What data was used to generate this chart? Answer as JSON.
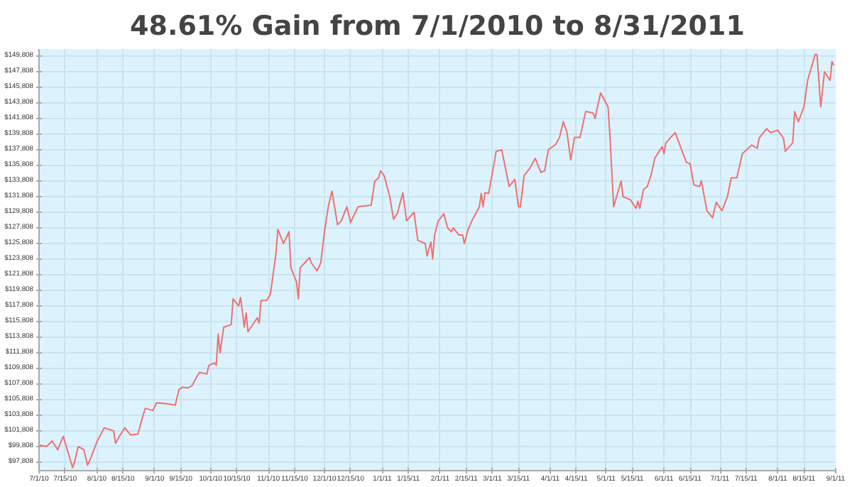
{
  "chart_data": {
    "type": "line",
    "title": "48.61% Gain from 7/1/2010 to 8/31/2011",
    "x": [
      "2010-07-01",
      "2010-07-05",
      "2010-07-08",
      "2010-07-11",
      "2010-07-14",
      "2010-07-19",
      "2010-07-20",
      "2010-07-22",
      "2010-07-25",
      "2010-07-27",
      "2010-07-29",
      "2010-08-01",
      "2010-08-05",
      "2010-08-10",
      "2010-08-11",
      "2010-08-13",
      "2010-08-16",
      "2010-08-19",
      "2010-08-23",
      "2010-08-26",
      "2010-08-27",
      "2010-08-31",
      "2010-09-02",
      "2010-09-07",
      "2010-09-12",
      "2010-09-14",
      "2010-09-16",
      "2010-09-19",
      "2010-09-21",
      "2010-09-23",
      "2010-09-25",
      "2010-09-29",
      "2010-09-30",
      "2010-10-03",
      "2010-10-04",
      "2010-10-05",
      "2010-10-06",
      "2010-10-08",
      "2010-10-12",
      "2010-10-13",
      "2010-10-16",
      "2010-10-17",
      "2010-10-19",
      "2010-10-20",
      "2010-10-21",
      "2010-10-26",
      "2010-10-27",
      "2010-10-28",
      "2010-10-31",
      "2010-11-02",
      "2010-11-05",
      "2010-11-06",
      "2010-11-09",
      "2010-11-12",
      "2010-11-13",
      "2010-11-16",
      "2010-11-17",
      "2010-11-18",
      "2010-11-23",
      "2010-11-24",
      "2010-11-27",
      "2010-11-29",
      "2010-12-01",
      "2010-12-03",
      "2010-12-05",
      "2010-12-08",
      "2010-12-10",
      "2010-12-13",
      "2010-12-15",
      "2010-12-19",
      "2010-12-26",
      "2010-12-28",
      "2010-12-30",
      "2010-12-31",
      "2011-01-02",
      "2011-01-05",
      "2011-01-07",
      "2011-01-09",
      "2011-01-12",
      "2011-01-14",
      "2011-01-18",
      "2011-01-20",
      "2011-01-24",
      "2011-01-25",
      "2011-01-27",
      "2011-01-28",
      "2011-01-29",
      "2011-01-31",
      "2011-02-03",
      "2011-02-05",
      "2011-02-07",
      "2011-02-08",
      "2011-02-11",
      "2011-02-13",
      "2011-02-14",
      "2011-02-16",
      "2011-02-18",
      "2011-02-22",
      "2011-02-23",
      "2011-02-24",
      "2011-02-25",
      "2011-02-27",
      "2011-03-02",
      "2011-03-03",
      "2011-03-06",
      "2011-03-10",
      "2011-03-13",
      "2011-03-15",
      "2011-03-16",
      "2011-03-18",
      "2011-03-21",
      "2011-03-24",
      "2011-03-27",
      "2011-03-29",
      "2011-03-31",
      "2011-04-04",
      "2011-04-06",
      "2011-04-08",
      "2011-04-10",
      "2011-04-12",
      "2011-04-14",
      "2011-04-17",
      "2011-04-20",
      "2011-04-24",
      "2011-04-25",
      "2011-04-28",
      "2011-05-02",
      "2011-05-03",
      "2011-05-05",
      "2011-05-09",
      "2011-05-10",
      "2011-05-14",
      "2011-05-17",
      "2011-05-18",
      "2011-05-19",
      "2011-05-21",
      "2011-05-23",
      "2011-05-25",
      "2011-05-27",
      "2011-05-31",
      "2011-06-01",
      "2011-06-02",
      "2011-06-07",
      "2011-06-09",
      "2011-06-13",
      "2011-06-15",
      "2011-06-17",
      "2011-06-20",
      "2011-06-21",
      "2011-06-24",
      "2011-06-27",
      "2011-06-29",
      "2011-07-02",
      "2011-07-05",
      "2011-07-07",
      "2011-07-10",
      "2011-07-13",
      "2011-07-18",
      "2011-07-21",
      "2011-07-22",
      "2011-07-26",
      "2011-07-28",
      "2011-08-01",
      "2011-08-04",
      "2011-08-05",
      "2011-08-09",
      "2011-08-10",
      "2011-08-12",
      "2011-08-15",
      "2011-08-17",
      "2011-08-21",
      "2011-08-22",
      "2011-08-24",
      "2011-08-26",
      "2011-08-29",
      "2011-08-30",
      "2011-08-31"
    ],
    "series": [
      {
        "color": "#f07070",
        "values": [
          100000,
          99800,
          100500,
          99400,
          101100,
          97100,
          97800,
          99800,
          99400,
          97400,
          98500,
          100400,
          102200,
          101800,
          100200,
          101100,
          102200,
          101300,
          101400,
          104000,
          104700,
          104400,
          105400,
          105300,
          105100,
          107100,
          107400,
          107300,
          107600,
          108500,
          109300,
          109100,
          110200,
          110500,
          110200,
          114200,
          111800,
          115100,
          115400,
          118700,
          117800,
          118900,
          115100,
          116900,
          114500,
          116300,
          115600,
          118500,
          118500,
          119300,
          124500,
          127600,
          125800,
          127300,
          122700,
          120900,
          118700,
          122700,
          124000,
          123300,
          122300,
          123300,
          127300,
          130500,
          132500,
          128200,
          128700,
          130500,
          128500,
          130500,
          130700,
          133800,
          134200,
          135100,
          134500,
          131800,
          128900,
          129600,
          132300,
          128700,
          129800,
          126200,
          125800,
          124200,
          126000,
          123800,
          126900,
          128700,
          129600,
          127800,
          127300,
          127800,
          126900,
          126900,
          125800,
          127600,
          128700,
          130500,
          132200,
          130500,
          132300,
          132200,
          136200,
          137600,
          137800,
          133100,
          134000,
          130500,
          130500,
          134500,
          135400,
          136700,
          134900,
          135100,
          137800,
          138500,
          139400,
          141400,
          140000,
          136500,
          139400,
          139400,
          142700,
          142500,
          141800,
          145100,
          143300,
          139600,
          130500,
          133800,
          131800,
          131400,
          130300,
          131200,
          130300,
          132700,
          133100,
          134500,
          136700,
          138200,
          137300,
          138700,
          140000,
          138700,
          136200,
          136000,
          133300,
          133100,
          133800,
          130000,
          129100,
          131100,
          130000,
          131800,
          134200,
          134200,
          137300,
          138400,
          138000,
          139300,
          140500,
          140000,
          140300,
          139300,
          137600,
          138700,
          142700,
          141400,
          143300,
          146700,
          150000,
          150000,
          143300,
          147800,
          146700,
          149100,
          148600
        ]
      }
    ],
    "xlim": [
      "2010-07-01",
      "2011-09-01"
    ],
    "xticks": [
      {
        "value": "2010-07-01",
        "label": "7/1/10"
      },
      {
        "value": "2010-07-15",
        "label": "7/15/10"
      },
      {
        "value": "2010-08-01",
        "label": "8/1/10"
      },
      {
        "value": "2010-08-15",
        "label": "8/15/10"
      },
      {
        "value": "2010-09-01",
        "label": "9/1/10"
      },
      {
        "value": "2010-09-15",
        "label": "9/15/10"
      },
      {
        "value": "2010-10-01",
        "label": "10/1/10"
      },
      {
        "value": "2010-10-15",
        "label": "10/15/10"
      },
      {
        "value": "2010-11-01",
        "label": "11/1/10"
      },
      {
        "value": "2010-11-15",
        "label": "11/15/10"
      },
      {
        "value": "2010-12-01",
        "label": "12/1/10"
      },
      {
        "value": "2010-12-15",
        "label": "12/15/10"
      },
      {
        "value": "2011-01-01",
        "label": "1/1/11"
      },
      {
        "value": "2011-01-15",
        "label": "1/15/11"
      },
      {
        "value": "2011-02-01",
        "label": "2/1/11"
      },
      {
        "value": "2011-02-15",
        "label": "2/15/11"
      },
      {
        "value": "2011-03-01",
        "label": "3/1/11"
      },
      {
        "value": "2011-03-15",
        "label": "3/15/11"
      },
      {
        "value": "2011-04-01",
        "label": "4/1/11"
      },
      {
        "value": "2011-04-15",
        "label": "4/15/11"
      },
      {
        "value": "2011-05-01",
        "label": "5/1/11"
      },
      {
        "value": "2011-05-15",
        "label": "5/15/11"
      },
      {
        "value": "2011-06-01",
        "label": "6/1/11"
      },
      {
        "value": "2011-06-15",
        "label": "6/15/11"
      },
      {
        "value": "2011-07-01",
        "label": "7/1/11"
      },
      {
        "value": "2011-07-15",
        "label": "7/15/11"
      },
      {
        "value": "2011-08-01",
        "label": "8/1/11"
      },
      {
        "value": "2011-08-15",
        "label": "8/15/11"
      },
      {
        "value": "2011-09-01",
        "label": "9/1/11"
      }
    ],
    "ylim": [
      96708,
      150708
    ],
    "yticks": [
      {
        "value": 97808,
        "label": "$97,808"
      },
      {
        "value": 99808,
        "label": "$99,808"
      },
      {
        "value": 101808,
        "label": "$101,808"
      },
      {
        "value": 103808,
        "label": "$103,808"
      },
      {
        "value": 105808,
        "label": "$105,808"
      },
      {
        "value": 107808,
        "label": "$107,808"
      },
      {
        "value": 109808,
        "label": "$109,808"
      },
      {
        "value": 111808,
        "label": "$111,808"
      },
      {
        "value": 113808,
        "label": "$113,808"
      },
      {
        "value": 115808,
        "label": "$115,808"
      },
      {
        "value": 117808,
        "label": "$117,808"
      },
      {
        "value": 119808,
        "label": "$119,808"
      },
      {
        "value": 121808,
        "label": "$121,808"
      },
      {
        "value": 123808,
        "label": "$123,808"
      },
      {
        "value": 125808,
        "label": "$125,808"
      },
      {
        "value": 127808,
        "label": "$127,808"
      },
      {
        "value": 129808,
        "label": "$129,808"
      },
      {
        "value": 131808,
        "label": "$131,808"
      },
      {
        "value": 133808,
        "label": "$133,808"
      },
      {
        "value": 135808,
        "label": "$135,808"
      },
      {
        "value": 137808,
        "label": "$137,808"
      },
      {
        "value": 139808,
        "label": "$139,808"
      },
      {
        "value": 141808,
        "label": "$141,808"
      },
      {
        "value": 143808,
        "label": "$143,808"
      },
      {
        "value": 145808,
        "label": "$145,808"
      },
      {
        "value": 147808,
        "label": "$147,808"
      },
      {
        "value": 149808,
        "label": "$149,808"
      }
    ],
    "grid": true
  }
}
